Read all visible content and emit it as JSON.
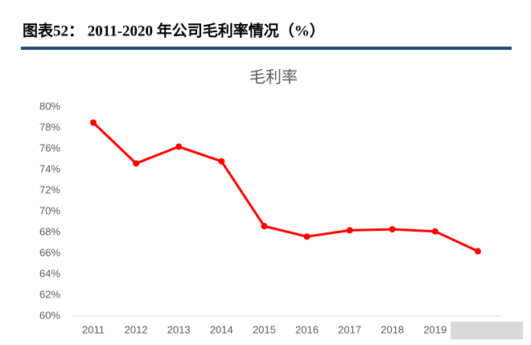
{
  "header": {
    "title": "图表52：  2011-2020 年公司毛利率情况（%）"
  },
  "chart_data": {
    "type": "line",
    "title": "毛利率",
    "categories": [
      "2011",
      "2012",
      "2013",
      "2014",
      "2015",
      "2016",
      "2017",
      "2018",
      "2019",
      null
    ],
    "series": [
      {
        "name": "毛利率",
        "color": "#ff0000",
        "values": [
          78.5,
          74.6,
          76.2,
          74.8,
          68.6,
          67.6,
          68.2,
          68.3,
          68.1,
          66.2
        ]
      }
    ],
    "ylim": [
      60,
      80
    ],
    "yticks": [
      {
        "value": 60,
        "label": "60%"
      },
      {
        "value": 62,
        "label": "62%"
      },
      {
        "value": 64,
        "label": "64%"
      },
      {
        "value": 66,
        "label": "66%"
      },
      {
        "value": 68,
        "label": "68%"
      },
      {
        "value": 70,
        "label": "70%"
      },
      {
        "value": 72,
        "label": "72%"
      },
      {
        "value": 74,
        "label": "74%"
      },
      {
        "value": 76,
        "label": "76%"
      },
      {
        "value": 78,
        "label": "78%"
      },
      {
        "value": 80,
        "label": "80%"
      }
    ],
    "grid": false
  }
}
